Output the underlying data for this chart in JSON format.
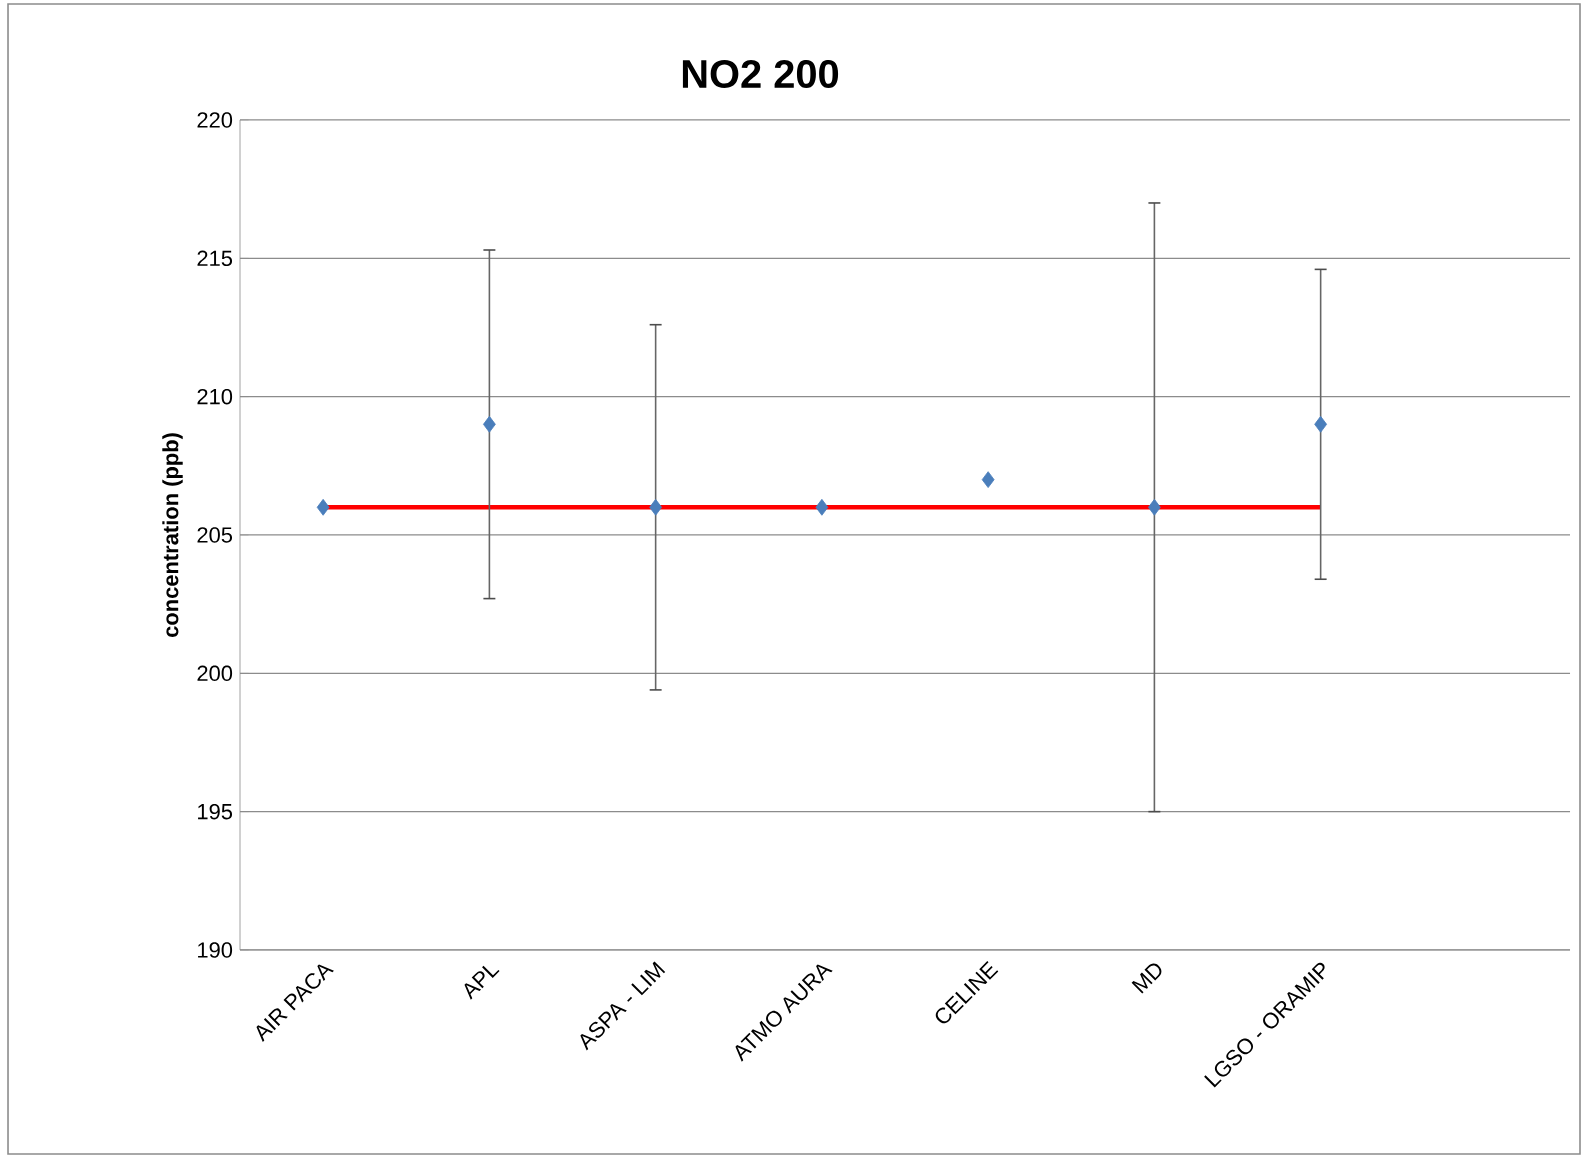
{
  "chart_data": {
    "type": "scatter",
    "title": "NO2 200",
    "ylabel": "concentration (ppb)",
    "categories": [
      "AIR PACA",
      "APL",
      "ASPA - LIM",
      "ATMO AURA",
      "CELINE",
      "MD",
      "LGSO - ORAMIP",
      null
    ],
    "series": [
      {
        "type": "line",
        "color": "#ff0000",
        "values": [
          206,
          206,
          206,
          206,
          206,
          206,
          206,
          null
        ],
        "marker": "none",
        "line_style": "solid"
      },
      {
        "color": "#4a7ebb",
        "marker": "diamond",
        "values": [
          206,
          209,
          206,
          206,
          207,
          206,
          209,
          null
        ],
        "errors": [
          null,
          6.3,
          6.6,
          null,
          null,
          11,
          5.6,
          null
        ]
      }
    ],
    "ylim": [
      190,
      220
    ],
    "yticks": [
      190,
      195,
      200,
      205,
      210,
      215,
      220
    ],
    "grid": "y"
  }
}
